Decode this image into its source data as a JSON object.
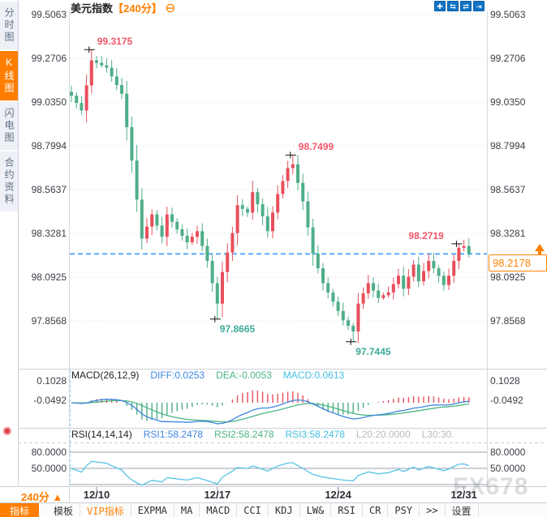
{
  "header": {
    "symbol": "美元指数",
    "period": "【240分】",
    "collapse": "⊖",
    "icons": [
      {
        "name": "pan-icon",
        "glyph": "✚"
      },
      {
        "name": "compress-xaxis-icon",
        "glyph": "⇆"
      },
      {
        "name": "expand-xaxis-icon",
        "glyph": "⇄"
      },
      {
        "name": "goto-latest-icon",
        "glyph": "⇥"
      }
    ]
  },
  "sidebar": {
    "tabs": [
      {
        "label": "分时图",
        "name": "time-chart",
        "active": false
      },
      {
        "label": "K线图",
        "name": "kline-chart",
        "active": true
      },
      {
        "label": "闪电图",
        "name": "flash-chart",
        "active": false
      },
      {
        "label": "合约资料",
        "name": "contract-info",
        "active": false
      }
    ]
  },
  "indicators": {
    "macd": {
      "title": "MACD(26,12,9)",
      "diff_label": "DIFF:0.0253",
      "dea_label": "DEA:-0.0053",
      "macd_label": "MACD:0.0613"
    },
    "rsi": {
      "title": "RSI(14,14,14)",
      "rsi1_label": "RSI1:58.2478",
      "rsi2_label": "RSI2:58.2478",
      "rsi3_label": "RSI3:58.2478",
      "l20_label": "L20:20.0000",
      "l30_label": "L30:30."
    }
  },
  "price_box": {
    "value": "98.2178"
  },
  "period_selector": {
    "label": "240分",
    "icon": "▲"
  },
  "watermark": "FX678",
  "bottom_bar": {
    "items": [
      {
        "label": "指标",
        "name": "indicators",
        "style": "active"
      },
      {
        "label": "模板",
        "name": "templates",
        "style": ""
      },
      {
        "label": "VIP指标",
        "name": "vip-indicators",
        "style": "vip"
      },
      {
        "label": "EXPMA",
        "name": "expma",
        "style": ""
      },
      {
        "label": "MA",
        "name": "ma",
        "style": ""
      },
      {
        "label": "MACD",
        "name": "macd",
        "style": ""
      },
      {
        "label": "CCI",
        "name": "cci",
        "style": ""
      },
      {
        "label": "KDJ",
        "name": "kdj",
        "style": ""
      },
      {
        "label": "LW&",
        "name": "lwr",
        "style": ""
      },
      {
        "label": "RSI",
        "name": "rsi",
        "style": ""
      },
      {
        "label": "CR",
        "name": "cr",
        "style": ""
      },
      {
        "label": "PSY",
        "name": "psy",
        "style": ""
      },
      {
        "label": ">>",
        "name": "more",
        "style": ""
      },
      {
        "label": "设置",
        "name": "settings",
        "style": ""
      }
    ]
  },
  "colors": {
    "up": "#e84f5c",
    "down": "#4fae88",
    "accent": "#ff7e00",
    "price_line": "#1e90ff",
    "diff": "#3e86e0",
    "dea": "#4cb583",
    "macd_val": "#45c0e0",
    "rsi_line": "#56c3e8",
    "ann_high": "#f0566a",
    "ann_low": "#3cab97",
    "icon_blue": "#1273c4"
  },
  "chart_data": {
    "type": "candlestick",
    "symbol": "美元指数",
    "period": "240分",
    "candle_count": 80,
    "current_price": 98.2178,
    "price_axis": {
      "ticks": [
        99.5063,
        99.2706,
        99.035,
        98.7994,
        98.5637,
        98.3281,
        98.0925,
        97.8568
      ]
    },
    "close_waypoints": [
      [
        0,
        99.07
      ],
      [
        2,
        98.99
      ],
      [
        4,
        99.26
      ],
      [
        7,
        99.22
      ],
      [
        10,
        99.08
      ],
      [
        12,
        98.72
      ],
      [
        14,
        98.3
      ],
      [
        16,
        98.43
      ],
      [
        18,
        98.31
      ],
      [
        19,
        98.43
      ],
      [
        21,
        98.35
      ],
      [
        23,
        98.28
      ],
      [
        25,
        98.34
      ],
      [
        27,
        98.18
      ],
      [
        28,
        98.06
      ],
      [
        29,
        97.95
      ],
      [
        30,
        98.12
      ],
      [
        32,
        98.33
      ],
      [
        33,
        98.48
      ],
      [
        35,
        98.44
      ],
      [
        36,
        98.55
      ],
      [
        38,
        98.42
      ],
      [
        39,
        98.34
      ],
      [
        41,
        98.54
      ],
      [
        43,
        98.68
      ],
      [
        44,
        98.7
      ],
      [
        45,
        98.6
      ],
      [
        46,
        98.5
      ],
      [
        47,
        98.36
      ],
      [
        48,
        98.22
      ],
      [
        50,
        98.06
      ],
      [
        52,
        97.96
      ],
      [
        54,
        97.86
      ],
      [
        56,
        97.8
      ],
      [
        57,
        97.95
      ],
      [
        59,
        98.06
      ],
      [
        61,
        97.98
      ],
      [
        63,
        98.01
      ],
      [
        65,
        98.1
      ],
      [
        66,
        98.03
      ],
      [
        68,
        98.16
      ],
      [
        69,
        98.07
      ],
      [
        71,
        98.18
      ],
      [
        73,
        98.1
      ],
      [
        74,
        98.05
      ],
      [
        75,
        98.1
      ],
      [
        76,
        98.18
      ],
      [
        77,
        98.25
      ],
      [
        78,
        98.26
      ],
      [
        79,
        98.2178
      ]
    ],
    "annotations": [
      {
        "label": "99.3175",
        "price": 99.3175,
        "index": 4,
        "kind": "high",
        "side": "right-above"
      },
      {
        "label": "98.7499",
        "price": 98.7499,
        "index": 44,
        "kind": "high",
        "side": "right-above"
      },
      {
        "label": "98.2719",
        "price": 98.2719,
        "index": 77,
        "kind": "high",
        "side": "left-above"
      },
      {
        "label": "97.8665",
        "price": 97.8665,
        "index": 29,
        "kind": "low",
        "side": "right-below"
      },
      {
        "label": "97.7445",
        "price": 97.7445,
        "index": 56,
        "kind": "low",
        "side": "right-below"
      }
    ],
    "dates": [
      {
        "label": "12/10",
        "index": 5
      },
      {
        "label": "12/17",
        "index": 29
      },
      {
        "label": "12/24",
        "index": 53
      },
      {
        "label": "12/31",
        "index": 78
      }
    ],
    "macd": {
      "diff": 0.0253,
      "dea": -0.0053,
      "macd": 0.0613,
      "axis_ticks": [
        0.1028,
        -0.0492
      ]
    },
    "rsi": {
      "rsi1": 58.2478,
      "rsi2": 58.2478,
      "rsi3": 58.2478,
      "axis_ticks": [
        80,
        50
      ],
      "levels": [
        80,
        50,
        20
      ]
    }
  }
}
